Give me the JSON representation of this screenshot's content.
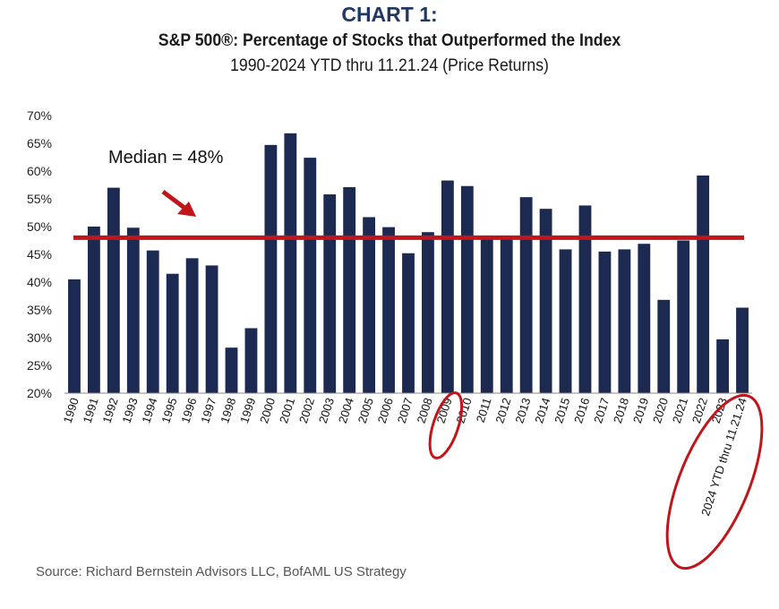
{
  "header": {
    "label": "CHART 1:",
    "title": "S&P 500®: Percentage of Stocks that Outperformed the Index",
    "subtitle": "1990-2024 YTD thru 11.21.24 (Price Returns)"
  },
  "source": "Source: Richard Bernstein Advisors LLC, BofAML US Strategy",
  "annotation": {
    "median_text": "Median = 48%"
  },
  "colors": {
    "bar": "#1c2a52",
    "median_line": "#c0151b",
    "title": "#1f3864",
    "highlight": "#c0151b"
  },
  "chart_data": {
    "type": "bar",
    "title": "S&P 500®: Percentage of Stocks that Outperformed the Index",
    "subtitle": "1990-2024 YTD thru 11.21.24 (Price Returns)",
    "categories": [
      "1990",
      "1991",
      "1992",
      "1993",
      "1994",
      "1995",
      "1996",
      "1997",
      "1998",
      "1999",
      "2000",
      "2001",
      "2002",
      "2003",
      "2004",
      "2005",
      "2006",
      "2007",
      "2008",
      "2009",
      "2010",
      "2011",
      "2012",
      "2013",
      "2014",
      "2015",
      "2016",
      "2017",
      "2018",
      "2019",
      "2020",
      "2021",
      "2022",
      "2023",
      "2024 YTD thru 11.21.24"
    ],
    "values": [
      40.5,
      50,
      57,
      49.8,
      45.7,
      41.5,
      44.3,
      43,
      28.2,
      31.7,
      64.7,
      66.8,
      62.4,
      55.8,
      57.1,
      51.7,
      49.9,
      45.2,
      49,
      58.3,
      57.3,
      48.3,
      48.3,
      55.3,
      53.2,
      45.9,
      53.8,
      45.5,
      45.9,
      46.9,
      36.8,
      47.5,
      59.2,
      29.7,
      35.4
    ],
    "ylim": [
      20,
      70
    ],
    "yticks": [
      "20%",
      "25%",
      "30%",
      "35%",
      "40%",
      "45%",
      "50%",
      "55%",
      "60%",
      "65%",
      "70%"
    ],
    "median": 48,
    "highlighted_categories": [
      "2009",
      "2024 YTD thru 11.21.24"
    ],
    "grid": false,
    "legend": "none"
  }
}
